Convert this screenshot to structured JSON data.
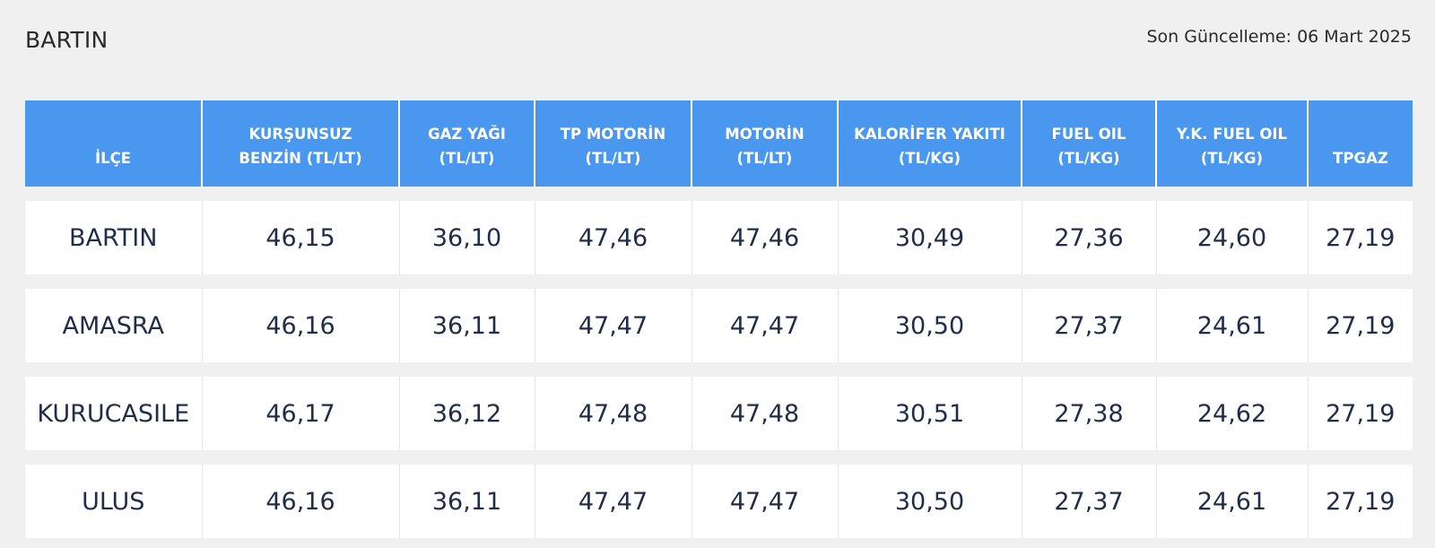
{
  "header": {
    "city_title": "BARTIN",
    "last_update": "Son Güncelleme: 06 Mart 2025"
  },
  "table": {
    "columns": [
      {
        "line1": "",
        "line2": "İLÇE"
      },
      {
        "line1": "KURŞUNSUZ",
        "line2": "BENZİN (TL/LT)"
      },
      {
        "line1": "GAZ YAĞI",
        "line2": "(TL/LT)"
      },
      {
        "line1": "TP MOTORİN",
        "line2": "(TL/LT)"
      },
      {
        "line1": "MOTORİN",
        "line2": "(TL/LT)"
      },
      {
        "line1": "KALORİFER YAKITI",
        "line2": "(TL/KG)"
      },
      {
        "line1": "FUEL OIL",
        "line2": "(TL/KG)"
      },
      {
        "line1": "Y.K. FUEL OIL",
        "line2": "(TL/KG)"
      },
      {
        "line1": "",
        "line2": "TPGAZ"
      }
    ],
    "rows": [
      [
        "BARTIN",
        "46,15",
        "36,10",
        "47,46",
        "47,46",
        "30,49",
        "27,36",
        "24,60",
        "27,19"
      ],
      [
        "AMASRA",
        "46,16",
        "36,11",
        "47,47",
        "47,47",
        "30,50",
        "27,37",
        "24,61",
        "27,19"
      ],
      [
        "KURUCASILE",
        "46,17",
        "36,12",
        "47,48",
        "47,48",
        "30,51",
        "27,38",
        "24,62",
        "27,19"
      ],
      [
        "ULUS",
        "46,16",
        "36,11",
        "47,47",
        "47,47",
        "30,50",
        "27,37",
        "24,61",
        "27,19"
      ]
    ]
  },
  "colors": {
    "header_background": "#4a97ef",
    "page_background": "#f0f0f0",
    "cell_text": "#1f2d4a"
  }
}
